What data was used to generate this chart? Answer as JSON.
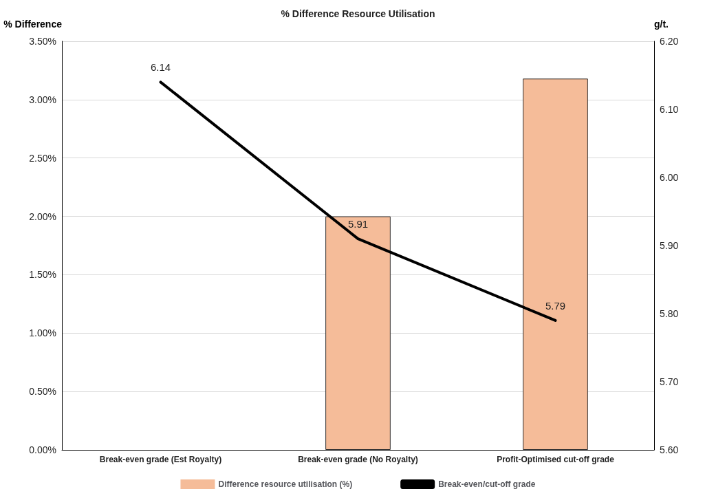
{
  "chart_data": {
    "type": "bar",
    "title": "% Difference Resource Utilisation",
    "ylabel": "% Difference",
    "y2label": "g/t.",
    "categories": [
      "Break-even grade (Est Royalty)",
      "Break-even grade (No Royalty)",
      "Profit-Optimised cut-off grade"
    ],
    "series": [
      {
        "name": "Difference resource utilisation (%)",
        "color": "#f5bc99",
        "values": [
          0,
          2.0,
          3.18
        ]
      },
      {
        "name": "Break-even/cut-off grade",
        "type": "line",
        "axis": "y2",
        "color": "#000000",
        "values": [
          6.14,
          5.91,
          5.79
        ],
        "value_labels": [
          "6.14",
          "5.91",
          "5.79"
        ]
      }
    ],
    "ylim": [
      0,
      3.5
    ],
    "yticks": [
      {
        "value": 0,
        "label": "0.00%"
      },
      {
        "value": 0.5,
        "label": "0.50%"
      },
      {
        "value": 1,
        "label": "1.00%"
      },
      {
        "value": 1.5,
        "label": "1.50%"
      },
      {
        "value": 2,
        "label": "2.00%"
      },
      {
        "value": 2.5,
        "label": "2.50%"
      },
      {
        "value": 3,
        "label": "3.00%"
      },
      {
        "value": 3.5,
        "label": "3.50%"
      }
    ],
    "y2lim": [
      5.6,
      6.2
    ],
    "y2ticks": [
      {
        "value": 5.6,
        "label": "5.60"
      },
      {
        "value": 5.7,
        "label": "5.70"
      },
      {
        "value": 5.8,
        "label": "5.80"
      },
      {
        "value": 5.9,
        "label": "5.90"
      },
      {
        "value": 6.0,
        "label": "6.00"
      },
      {
        "value": 6.1,
        "label": "6.10"
      },
      {
        "value": 6.2,
        "label": "6.20"
      }
    ],
    "grid": "y",
    "legend": "bottom",
    "marker": "none",
    "line_style": "solid"
  }
}
